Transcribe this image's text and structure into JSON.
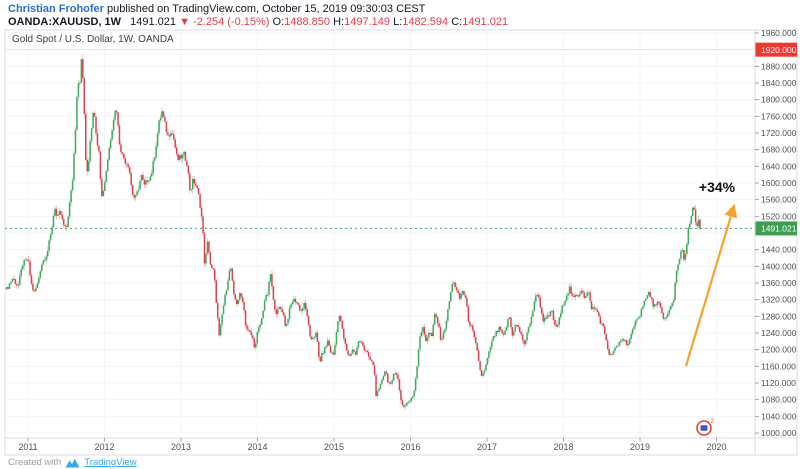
{
  "header": {
    "author": "Christian Frohofer",
    "published_text": "published on TradingView.com, October 15, 2019 09:30:03 CEST",
    "symbol": {
      "name": "OANDA:XAUUSD, 1W",
      "last": "1491.021",
      "direction_icon": "▼",
      "change": "-2.254 (-0.15%)",
      "ohlc": {
        "o": {
          "label": "O:",
          "value": "1488.850"
        },
        "h": {
          "label": "H:",
          "value": "1497.149"
        },
        "l": {
          "label": "L:",
          "value": "1482.594"
        },
        "c": {
          "label": "C:",
          "value": "1491.021"
        }
      }
    }
  },
  "chart": {
    "legend": "Gold Spot / U.S. Dollar, 1W, OANDA",
    "annotation": "+34%",
    "current_price_label": "1491.021",
    "high_price_label": "1920.000",
    "stamp_sup": "2"
  },
  "footer": {
    "created_with": "Created with",
    "brand": "TradingView"
  },
  "colors": {
    "up": "#3fa85c",
    "down": "#d6424f",
    "wick_up": "#a5cfb1",
    "wick_down": "#e7a6ad",
    "arrow": "#f7a22c",
    "current_label_bg": "#3d9e52",
    "high_label_bg": "#f2372e",
    "link": "#2a6fc9",
    "brand": "#38a9e4",
    "change_red": "#e03e4d",
    "grid": "#f3f5f9",
    "high_line": "#f2e2e2",
    "frame": "#dbdee4",
    "axis_text": "#4d5259",
    "annotation_text": "#111111",
    "price_line": "#3fa85c"
  },
  "chart_data": {
    "type": "candlestick",
    "title": "Gold Spot / U.S. Dollar, 1W, OANDA",
    "timeframe": "1W",
    "x_ticks": [
      "2011",
      "2012",
      "2013",
      "2014",
      "2015",
      "2016",
      "2017",
      "2018",
      "2019",
      "2020"
    ],
    "y_ticks": [
      1000,
      1040,
      1080,
      1120,
      1160,
      1200,
      1240,
      1280,
      1320,
      1360,
      1400,
      1440,
      1480,
      1520,
      1560,
      1600,
      1640,
      1680,
      1720,
      1760,
      1800,
      1840,
      1880,
      1920,
      1960
    ],
    "ylim": [
      988,
      1967
    ],
    "xlim_years": [
      2010.7,
      2020.5
    ],
    "current_price": 1491.021,
    "high_marker": 1920.0,
    "gain_annotation_pct": 34,
    "anchors": [
      [
        2010.72,
        1345
      ],
      [
        2010.8,
        1372
      ],
      [
        2010.87,
        1352
      ],
      [
        2010.93,
        1405
      ],
      [
        2011.0,
        1418
      ],
      [
        2011.04,
        1360
      ],
      [
        2011.08,
        1335
      ],
      [
        2011.13,
        1362
      ],
      [
        2011.17,
        1402
      ],
      [
        2011.21,
        1418
      ],
      [
        2011.25,
        1432
      ],
      [
        2011.3,
        1478
      ],
      [
        2011.35,
        1545
      ],
      [
        2011.38,
        1511
      ],
      [
        2011.42,
        1532
      ],
      [
        2011.46,
        1500
      ],
      [
        2011.5,
        1487
      ],
      [
        2011.54,
        1545
      ],
      [
        2011.58,
        1602
      ],
      [
        2011.62,
        1730
      ],
      [
        2011.65,
        1855
      ],
      [
        2011.67,
        1828
      ],
      [
        2011.7,
        1898
      ],
      [
        2011.73,
        1812
      ],
      [
        2011.75,
        1655
      ],
      [
        2011.78,
        1622
      ],
      [
        2011.81,
        1700
      ],
      [
        2011.84,
        1752
      ],
      [
        2011.86,
        1792
      ],
      [
        2011.89,
        1712
      ],
      [
        2011.93,
        1680
      ],
      [
        2011.96,
        1562
      ],
      [
        2012.0,
        1598
      ],
      [
        2012.04,
        1655
      ],
      [
        2012.09,
        1722
      ],
      [
        2012.13,
        1770
      ],
      [
        2012.16,
        1776
      ],
      [
        2012.19,
        1702
      ],
      [
        2012.23,
        1668
      ],
      [
        2012.28,
        1650
      ],
      [
        2012.32,
        1642
      ],
      [
        2012.36,
        1578
      ],
      [
        2012.4,
        1560
      ],
      [
        2012.44,
        1585
      ],
      [
        2012.48,
        1618
      ],
      [
        2012.52,
        1592
      ],
      [
        2012.56,
        1608
      ],
      [
        2012.61,
        1618
      ],
      [
        2012.66,
        1672
      ],
      [
        2012.71,
        1742
      ],
      [
        2012.75,
        1772
      ],
      [
        2012.79,
        1740
      ],
      [
        2012.83,
        1712
      ],
      [
        2012.87,
        1728
      ],
      [
        2012.91,
        1702
      ],
      [
        2012.95,
        1655
      ],
      [
        2013.0,
        1662
      ],
      [
        2013.04,
        1668
      ],
      [
        2013.08,
        1648
      ],
      [
        2013.12,
        1578
      ],
      [
        2013.16,
        1608
      ],
      [
        2013.2,
        1592
      ],
      [
        2013.24,
        1562
      ],
      [
        2013.28,
        1502
      ],
      [
        2013.31,
        1402
      ],
      [
        2013.35,
        1462
      ],
      [
        2013.39,
        1395
      ],
      [
        2013.43,
        1388
      ],
      [
        2013.47,
        1295
      ],
      [
        2013.5,
        1228
      ],
      [
        2013.54,
        1288
      ],
      [
        2013.58,
        1332
      ],
      [
        2013.62,
        1378
      ],
      [
        2013.65,
        1398
      ],
      [
        2013.69,
        1328
      ],
      [
        2013.73,
        1312
      ],
      [
        2013.77,
        1332
      ],
      [
        2013.81,
        1318
      ],
      [
        2013.85,
        1252
      ],
      [
        2013.89,
        1242
      ],
      [
        2013.93,
        1232
      ],
      [
        2013.97,
        1202
      ],
      [
        2014.0,
        1242
      ],
      [
        2014.05,
        1268
      ],
      [
        2014.09,
        1318
      ],
      [
        2014.13,
        1332
      ],
      [
        2014.17,
        1382
      ],
      [
        2014.21,
        1312
      ],
      [
        2014.25,
        1288
      ],
      [
        2014.29,
        1302
      ],
      [
        2014.33,
        1292
      ],
      [
        2014.37,
        1252
      ],
      [
        2014.41,
        1288
      ],
      [
        2014.45,
        1316
      ],
      [
        2014.49,
        1320
      ],
      [
        2014.53,
        1308
      ],
      [
        2014.57,
        1292
      ],
      [
        2014.61,
        1308
      ],
      [
        2014.65,
        1282
      ],
      [
        2014.69,
        1222
      ],
      [
        2014.73,
        1232
      ],
      [
        2014.77,
        1238
      ],
      [
        2014.81,
        1168
      ],
      [
        2014.85,
        1192
      ],
      [
        2014.88,
        1202
      ],
      [
        2014.92,
        1222
      ],
      [
        2014.96,
        1192
      ],
      [
        2015.0,
        1188
      ],
      [
        2015.04,
        1262
      ],
      [
        2015.08,
        1282
      ],
      [
        2015.12,
        1232
      ],
      [
        2015.16,
        1202
      ],
      [
        2015.2,
        1182
      ],
      [
        2015.24,
        1202
      ],
      [
        2015.28,
        1188
      ],
      [
        2015.32,
        1218
      ],
      [
        2015.36,
        1222
      ],
      [
        2015.4,
        1198
      ],
      [
        2015.44,
        1188
      ],
      [
        2015.48,
        1172
      ],
      [
        2015.52,
        1162
      ],
      [
        2015.55,
        1092
      ],
      [
        2015.59,
        1102
      ],
      [
        2015.63,
        1132
      ],
      [
        2015.67,
        1152
      ],
      [
        2015.71,
        1122
      ],
      [
        2015.75,
        1112
      ],
      [
        2015.79,
        1152
      ],
      [
        2015.83,
        1138
      ],
      [
        2015.87,
        1082
      ],
      [
        2015.91,
        1062
      ],
      [
        2015.95,
        1072
      ],
      [
        2016.0,
        1078
      ],
      [
        2016.04,
        1092
      ],
      [
        2016.08,
        1152
      ],
      [
        2016.12,
        1232
      ],
      [
        2016.16,
        1252
      ],
      [
        2016.2,
        1222
      ],
      [
        2016.24,
        1242
      ],
      [
        2016.28,
        1232
      ],
      [
        2016.32,
        1288
      ],
      [
        2016.36,
        1262
      ],
      [
        2016.4,
        1222
      ],
      [
        2016.44,
        1242
      ],
      [
        2016.48,
        1282
      ],
      [
        2016.52,
        1332
      ],
      [
        2016.56,
        1368
      ],
      [
        2016.6,
        1342
      ],
      [
        2016.64,
        1322
      ],
      [
        2016.68,
        1342
      ],
      [
        2016.72,
        1322
      ],
      [
        2016.76,
        1268
      ],
      [
        2016.8,
        1252
      ],
      [
        2016.84,
        1222
      ],
      [
        2016.88,
        1188
      ],
      [
        2016.92,
        1138
      ],
      [
        2016.96,
        1142
      ],
      [
        2017.0,
        1172
      ],
      [
        2017.05,
        1212
      ],
      [
        2017.09,
        1232
      ],
      [
        2017.13,
        1242
      ],
      [
        2017.17,
        1252
      ],
      [
        2017.21,
        1228
      ],
      [
        2017.25,
        1252
      ],
      [
        2017.29,
        1282
      ],
      [
        2017.33,
        1232
      ],
      [
        2017.37,
        1262
      ],
      [
        2017.41,
        1252
      ],
      [
        2017.45,
        1232
      ],
      [
        2017.49,
        1212
      ],
      [
        2017.53,
        1242
      ],
      [
        2017.57,
        1272
      ],
      [
        2017.61,
        1302
      ],
      [
        2017.65,
        1342
      ],
      [
        2017.69,
        1312
      ],
      [
        2017.73,
        1272
      ],
      [
        2017.77,
        1272
      ],
      [
        2017.81,
        1282
      ],
      [
        2017.85,
        1292
      ],
      [
        2017.89,
        1252
      ],
      [
        2017.93,
        1262
      ],
      [
        2017.97,
        1292
      ],
      [
        2018.0,
        1312
      ],
      [
        2018.04,
        1332
      ],
      [
        2018.08,
        1348
      ],
      [
        2018.12,
        1322
      ],
      [
        2018.16,
        1328
      ],
      [
        2018.2,
        1332
      ],
      [
        2018.24,
        1348
      ],
      [
        2018.28,
        1322
      ],
      [
        2018.32,
        1342
      ],
      [
        2018.36,
        1302
      ],
      [
        2018.4,
        1298
      ],
      [
        2018.44,
        1292
      ],
      [
        2018.48,
        1268
      ],
      [
        2018.52,
        1252
      ],
      [
        2018.56,
        1222
      ],
      [
        2018.6,
        1182
      ],
      [
        2018.64,
        1192
      ],
      [
        2018.68,
        1202
      ],
      [
        2018.72,
        1212
      ],
      [
        2018.76,
        1228
      ],
      [
        2018.8,
        1222
      ],
      [
        2018.84,
        1212
      ],
      [
        2018.88,
        1232
      ],
      [
        2018.92,
        1252
      ],
      [
        2018.96,
        1278
      ],
      [
        2019.0,
        1282
      ],
      [
        2019.04,
        1312
      ],
      [
        2019.08,
        1322
      ],
      [
        2019.12,
        1338
      ],
      [
        2019.16,
        1312
      ],
      [
        2019.2,
        1302
      ],
      [
        2019.24,
        1312
      ],
      [
        2019.28,
        1292
      ],
      [
        2019.32,
        1272
      ],
      [
        2019.36,
        1282
      ],
      [
        2019.4,
        1302
      ],
      [
        2019.44,
        1322
      ],
      [
        2019.47,
        1382
      ],
      [
        2019.5,
        1412
      ],
      [
        2019.53,
        1428
      ],
      [
        2019.56,
        1442
      ],
      [
        2019.58,
        1402
      ],
      [
        2019.61,
        1452
      ],
      [
        2019.64,
        1502
      ],
      [
        2019.67,
        1522
      ],
      [
        2019.7,
        1548
      ],
      [
        2019.72,
        1512
      ],
      [
        2019.74,
        1482
      ],
      [
        2019.76,
        1512
      ],
      [
        2019.78,
        1498
      ],
      [
        2019.79,
        1491.021
      ]
    ]
  }
}
